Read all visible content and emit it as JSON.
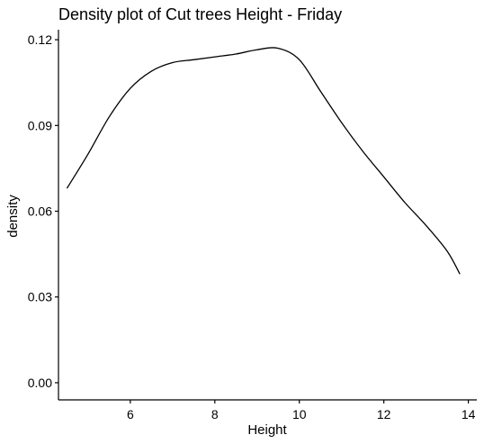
{
  "chart_data": {
    "type": "line",
    "title": "Density plot of Cut trees Height - Friday",
    "xlabel": "Height",
    "ylabel": "density",
    "xlim": [
      4.3,
      14.2
    ],
    "ylim": [
      -0.006,
      0.1235
    ],
    "x_ticks": [
      6,
      8,
      10,
      12,
      14
    ],
    "y_ticks": [
      0.0,
      0.03,
      0.06,
      0.09,
      0.12
    ],
    "x_tick_labels": [
      "6",
      "8",
      "10",
      "12",
      "14"
    ],
    "y_tick_labels": [
      "0.00",
      "0.03",
      "0.06",
      "0.09",
      "0.12"
    ],
    "grid": false,
    "series": [
      {
        "x": [
          4.5,
          5.0,
          5.5,
          6.0,
          6.5,
          7.0,
          7.5,
          8.0,
          8.5,
          9.0,
          9.5,
          10.0,
          10.5,
          11.0,
          11.5,
          12.0,
          12.5,
          13.0,
          13.5,
          13.8
        ],
        "y": [
          0.068,
          0.08,
          0.093,
          0.103,
          0.109,
          0.112,
          0.113,
          0.114,
          0.115,
          0.1165,
          0.117,
          0.113,
          0.102,
          0.091,
          0.081,
          0.072,
          0.063,
          0.055,
          0.046,
          0.038
        ]
      }
    ]
  }
}
